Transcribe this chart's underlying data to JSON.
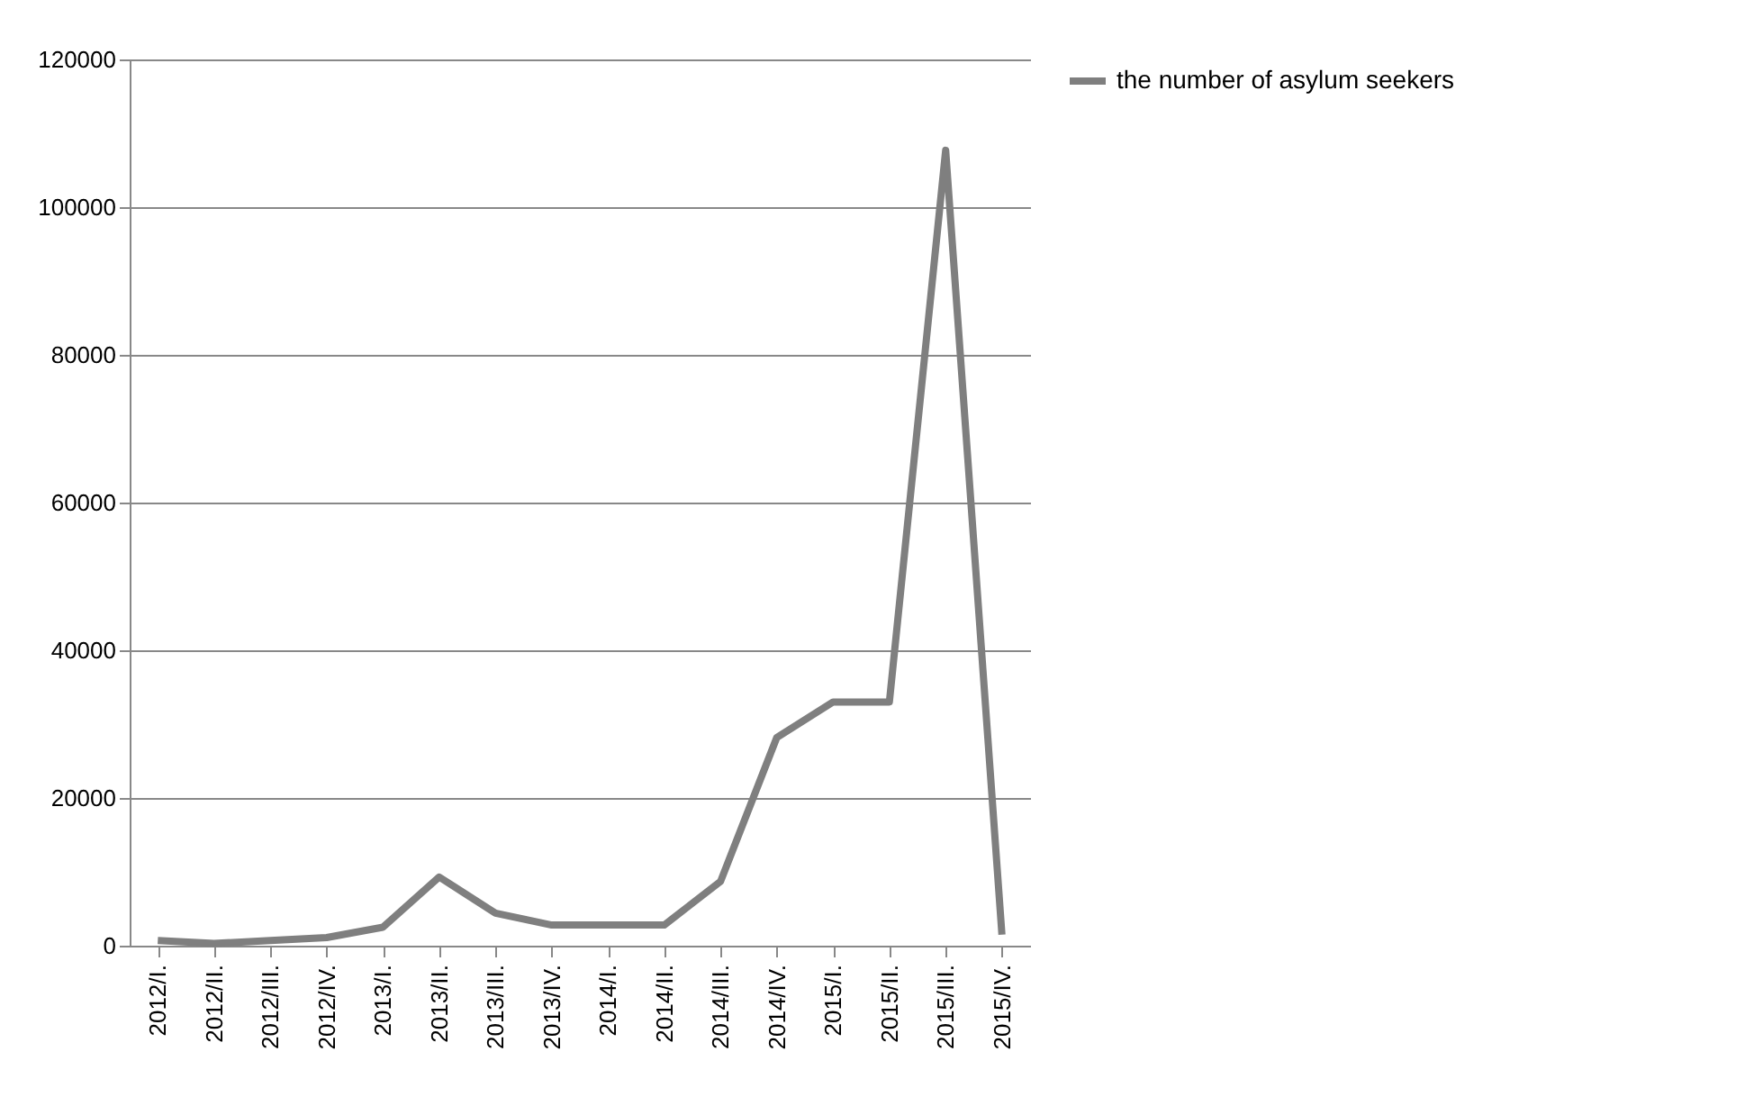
{
  "chart_data": {
    "type": "line",
    "categories": [
      "2012/I.",
      "2012/II.",
      "2012/III.",
      "2012/IV.",
      "2013/I.",
      "2013/II.",
      "2013/III.",
      "2013/IV.",
      "2014/I.",
      "2014/II.",
      "2014/III.",
      "2014/IV.",
      "2015/I.",
      "2015/II.",
      "2015/III.",
      "2015/IV."
    ],
    "series": [
      {
        "name": "the number of asylum seekers",
        "color": "#7f7f7f",
        "values": [
          700,
          300,
          700,
          1100,
          2500,
          9300,
          4400,
          2800,
          2800,
          2800,
          8700,
          28200,
          33000,
          33000,
          107700,
          1500
        ]
      }
    ],
    "ylim": [
      0,
      120000
    ],
    "yticks": [
      0,
      20000,
      40000,
      60000,
      80000,
      100000,
      120000
    ],
    "grid": "y",
    "legend": "right",
    "marker": "none"
  }
}
